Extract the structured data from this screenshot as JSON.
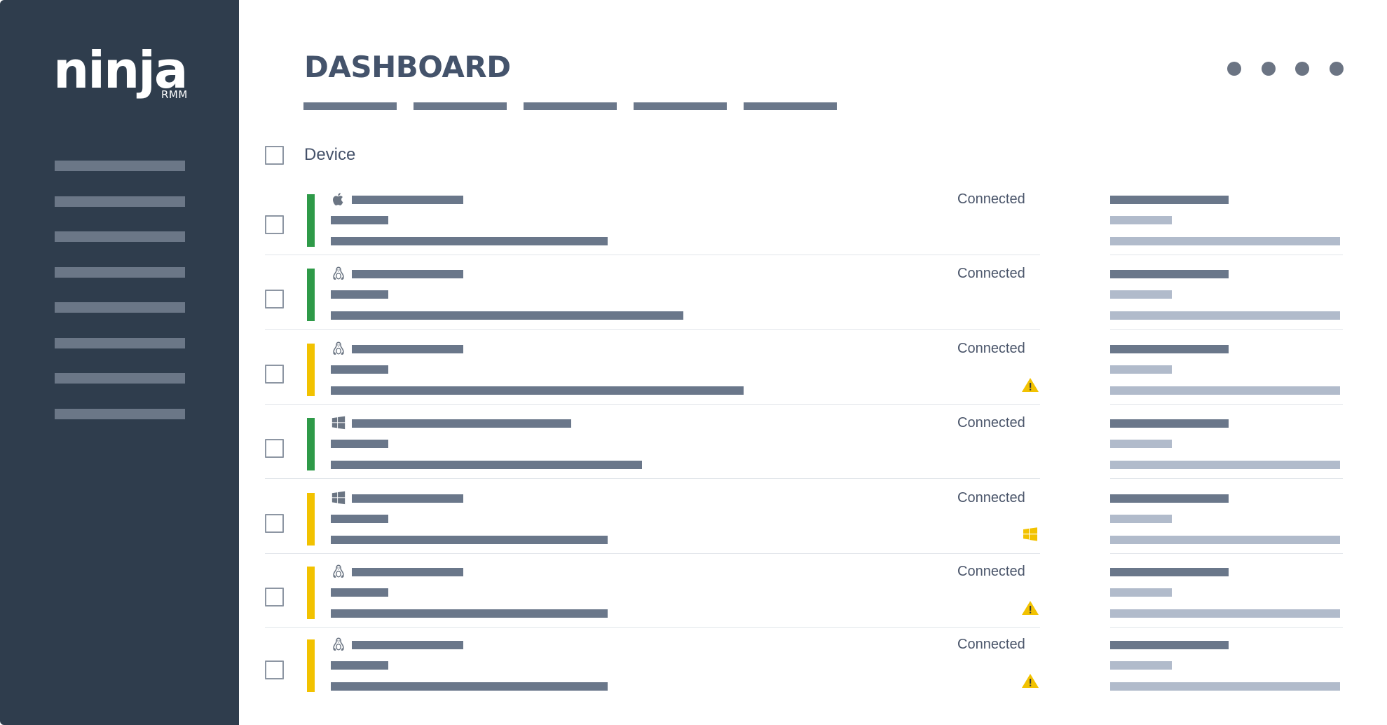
{
  "brand": {
    "name": "ninja",
    "product": "RMM"
  },
  "header": {
    "title": "DASHBOARD"
  },
  "colors": {
    "sidebar": "#2f3d4d",
    "online": "#2e9a48",
    "warning": "#f2c200",
    "text": "#45526a"
  },
  "table": {
    "column_label": "Device"
  },
  "rows": [
    {
      "os": "apple-icon",
      "status": "Connected",
      "health": "online",
      "alert": null
    },
    {
      "os": "linux-icon",
      "status": "Connected",
      "health": "online",
      "alert": null
    },
    {
      "os": "linux-icon",
      "status": "Connected",
      "health": "warning",
      "alert": "warning-icon"
    },
    {
      "os": "windows-icon",
      "status": "Connected",
      "health": "online",
      "alert": null
    },
    {
      "os": "windows-icon",
      "status": "Connected",
      "health": "warning",
      "alert": "windows-update-icon"
    },
    {
      "os": "linux-icon",
      "status": "Connected",
      "health": "warning",
      "alert": "warning-icon"
    },
    {
      "os": "linux-icon",
      "status": "Connected",
      "health": "warning",
      "alert": "warning-icon"
    }
  ]
}
